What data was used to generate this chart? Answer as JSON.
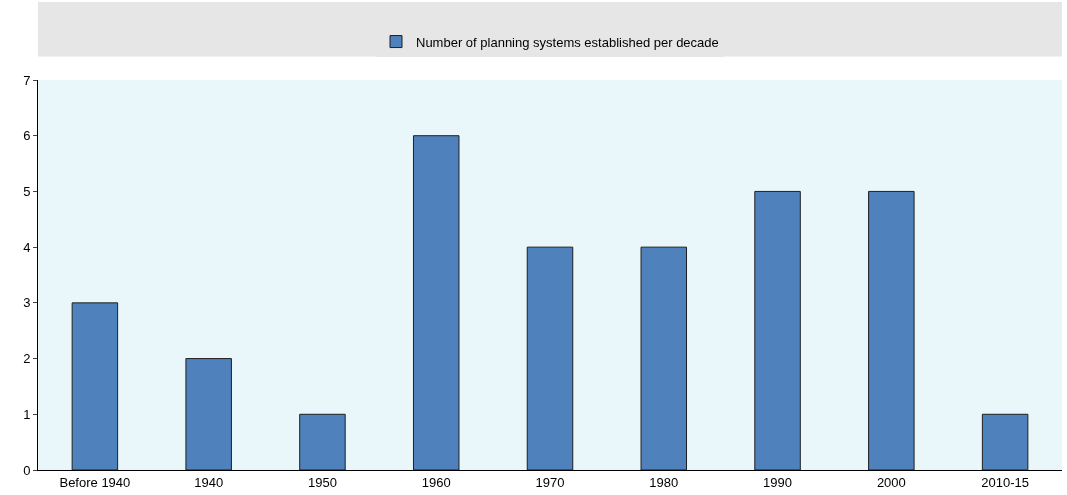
{
  "chart_data": {
    "type": "bar",
    "categories": [
      "Before 1940",
      "1940",
      "1950",
      "1960",
      "1970",
      "1980",
      "1990",
      "2000",
      "2010-15"
    ],
    "series": [
      {
        "name": "Number of planning systems established per decade",
        "color": "#4f81bd",
        "values": [
          3,
          2,
          1,
          6,
          4,
          4,
          5,
          5,
          1
        ]
      }
    ],
    "ylim": [
      0,
      7
    ],
    "yticks": [
      0,
      1,
      2,
      3,
      4,
      5,
      6,
      7
    ],
    "grid": false,
    "legend": "top"
  }
}
